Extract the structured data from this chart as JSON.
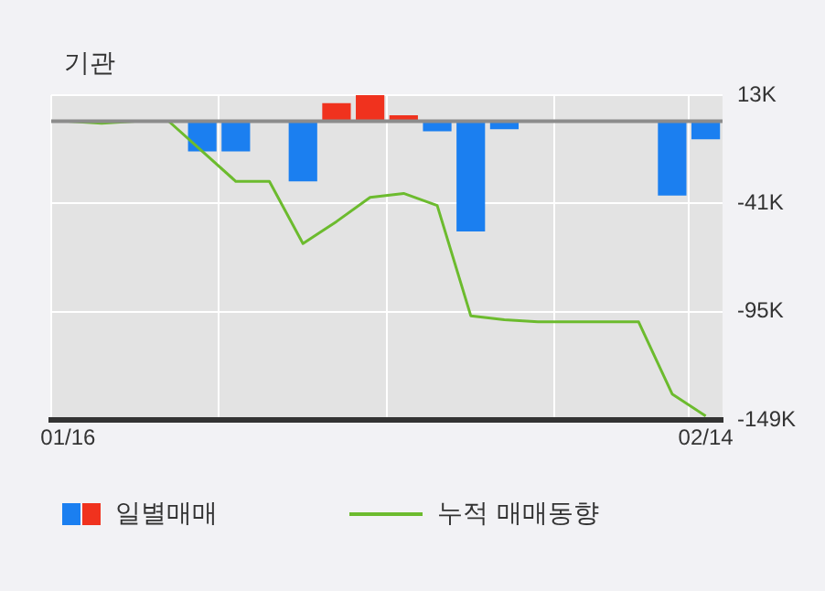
{
  "chart_data": {
    "type": "bar",
    "title": "기관",
    "categories": [
      "01/16",
      null,
      null,
      null,
      null,
      null,
      null,
      null,
      null,
      null,
      null,
      null,
      null,
      null,
      null,
      null,
      null,
      null,
      null,
      "02/14"
    ],
    "series": [
      {
        "name": "일별매매",
        "axis": "y",
        "colors": [
          "#1b7ff0",
          "#1b7ff0",
          "#1b7ff0",
          "#1b7ff0",
          "#1b7ff0",
          "#1b7ff0",
          "#1b7ff0",
          "#1b7ff0",
          "#f0321e",
          "#f0321e",
          "#f0321e",
          "#1b7ff0",
          "#1b7ff0",
          "#1b7ff0",
          "#1b7ff0",
          "#1b7ff0",
          "#1b7ff0",
          "#1b7ff0",
          "#1b7ff0",
          "#1b7ff0"
        ],
        "values": [
          0,
          0,
          0,
          0,
          -15000,
          -15000,
          0,
          -30000,
          9000,
          13000,
          3000,
          -5000,
          -55000,
          -4000,
          0,
          0,
          0,
          0,
          -37000,
          -9000
        ]
      },
      {
        "name": "누적 매매동향",
        "type": "line",
        "axis": "y",
        "color": "#6cbb2e",
        "values": [
          0,
          -1000,
          0,
          0,
          -15000,
          -30000,
          -30000,
          -61000,
          -50000,
          -38000,
          -36000,
          -42000,
          -97000,
          -99000,
          -100000,
          -100000,
          -100000,
          -100000,
          -136000,
          -147000
        ]
      }
    ],
    "ylim": [
      -149000,
      13000
    ],
    "yticks": [
      {
        "value": 13000,
        "label": "13K"
      },
      {
        "value": -41000,
        "label": "-41K"
      },
      {
        "value": -95000,
        "label": "-95K"
      },
      {
        "value": -149000,
        "label": "-149K"
      }
    ],
    "ref_lines": [
      {
        "axis": "y",
        "value": 0,
        "color": "#8c8c8c"
      }
    ],
    "grid": true,
    "legend": "bottom",
    "marker": "none",
    "line_style": "solid"
  }
}
